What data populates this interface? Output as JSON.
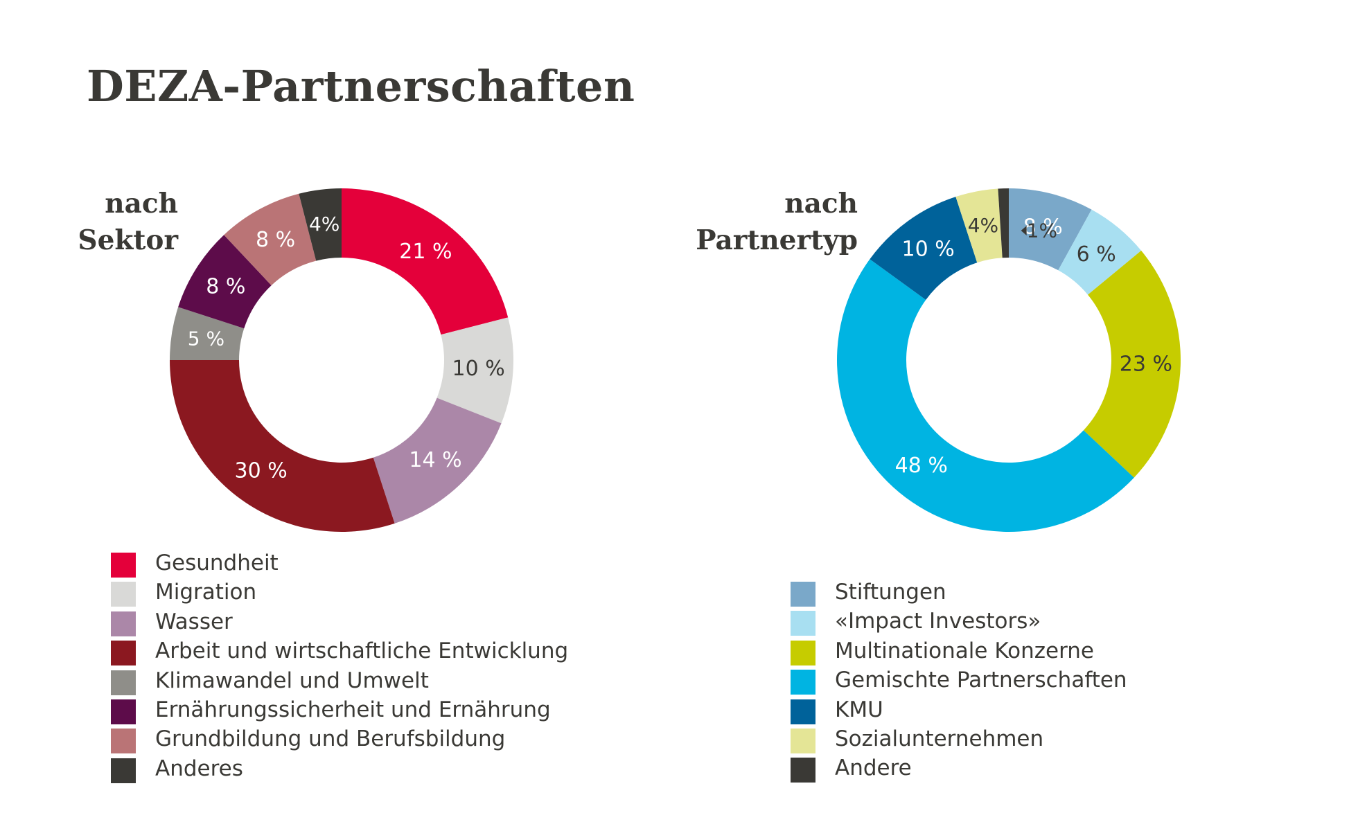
{
  "title": "DEZA-Partnerschaften",
  "chart_data": [
    {
      "type": "pie",
      "title": "nach Sektor",
      "title_lines": [
        "nach",
        "Sektor"
      ],
      "categories": [
        "Gesundheit",
        "Migration",
        "Wasser",
        "Arbeit und wirtschaftliche Entwicklung",
        "Klimawandel und Umwelt",
        "Ernährungssicherheit und Ernährung",
        "Grundbildung und Berufsbildung",
        "Anderes"
      ],
      "values": [
        21,
        10,
        14,
        30,
        5,
        8,
        8,
        4
      ],
      "labels": [
        "21 %",
        "10 %",
        "14 %",
        "30 %",
        "5 %",
        "8 %",
        "8 %",
        "4%"
      ],
      "colors": [
        "#e4003a",
        "#d9d9d7",
        "#ab87a8",
        "#8b1820",
        "#8f8e89",
        "#5d0c4a",
        "#ba7476",
        "#3a3935"
      ],
      "label_colors": [
        "#ffffff",
        "#3a3935",
        "#ffffff",
        "#ffffff",
        "#ffffff",
        "#ffffff",
        "#ffffff",
        "#ffffff"
      ],
      "donut": true,
      "start_angle": "12 o'clock, clockwise",
      "legend_position": "bottom"
    },
    {
      "type": "pie",
      "title": "nach Partnertyp",
      "title_lines": [
        "nach",
        "Partnertyp"
      ],
      "categories": [
        "Stiftungen",
        "«Impact Investors»",
        "Multinationale Konzerne",
        "Gemischte Partnerschaften",
        "KMU",
        "Sozialunternehmen",
        "Andere"
      ],
      "values": [
        8,
        6,
        23,
        48,
        10,
        4,
        1
      ],
      "labels": [
        "8 %",
        "6 %",
        "23 %",
        "48 %",
        "10 %",
        "4%",
        "1%"
      ],
      "colors": [
        "#7aa8c9",
        "#a8dff1",
        "#c6cc00",
        "#00b4e2",
        "#00629a",
        "#e4e596",
        "#3a3935"
      ],
      "label_colors": [
        "#ffffff",
        "#3a3935",
        "#3a3935",
        "#ffffff",
        "#ffffff",
        "#3a3935",
        "#3a3935"
      ],
      "donut": true,
      "start_angle": "12 o'clock, clockwise",
      "legend_position": "bottom"
    }
  ]
}
